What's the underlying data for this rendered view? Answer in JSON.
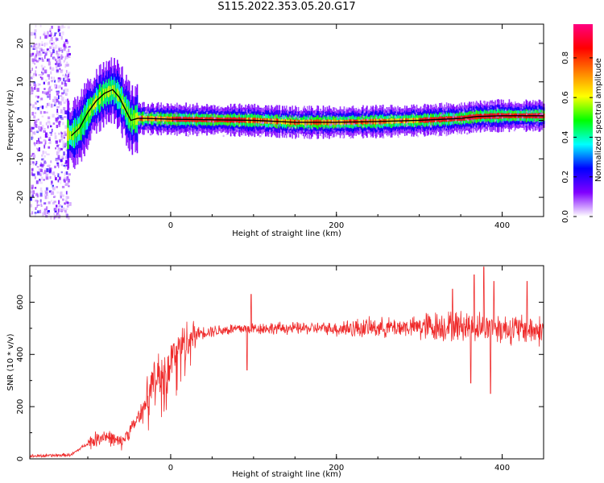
{
  "figure": {
    "title": "S115.2022.353.05.20.G17"
  },
  "chart_data": [
    {
      "type": "heatmap",
      "title": "",
      "xlabel": "Height of straight line (km)",
      "ylabel": "Frequency (Hz)",
      "xlim": [
        -170,
        450
      ],
      "ylim": [
        -25,
        25
      ],
      "xticks": [
        0,
        200,
        400
      ],
      "yticks": [
        -20,
        -10,
        0,
        10,
        20
      ],
      "colorbar": {
        "label": "Normalized spectral amplitude",
        "range": [
          0.0,
          0.97
        ],
        "ticks": [
          0.0,
          0.2,
          0.4,
          0.6,
          0.8
        ],
        "colormap": [
          "#ffffff",
          "#8000ff",
          "#0000ff",
          "#00ffff",
          "#00ff00",
          "#ffff00",
          "#ff8000",
          "#ff0000",
          "#ff0080"
        ]
      },
      "ridge": {
        "x": [
          -170,
          -120,
          -110,
          -100,
          -90,
          -80,
          -70,
          -62,
          -55,
          -48,
          -40,
          -30,
          0,
          100,
          150,
          200,
          250,
          300,
          350,
          370,
          400,
          450
        ],
        "y": [
          0,
          -4,
          -2,
          2,
          5,
          7,
          8,
          6,
          3,
          0,
          0.5,
          0.5,
          0.3,
          0,
          -0.5,
          -0.5,
          -0.3,
          0,
          0.5,
          1,
          1.2,
          1.2
        ]
      },
      "noise_region_x": [
        -170,
        -123
      ]
    },
    {
      "type": "line",
      "title": "",
      "xlabel": "Height of straight line (km)",
      "ylabel": "SNR (10 * v/v)",
      "xlim": [
        -170,
        450
      ],
      "ylim": [
        0,
        740
      ],
      "xticks": [
        0,
        200,
        400
      ],
      "yticks": [
        0,
        200,
        400,
        600
      ],
      "color": "#ef2b2b",
      "trend": {
        "x": [
          -170,
          -120,
          -100,
          -80,
          -60,
          -40,
          -20,
          0,
          10,
          20,
          30,
          50,
          90,
          100,
          150,
          200,
          300,
          350,
          400,
          450
        ],
        "y": [
          10,
          15,
          60,
          90,
          60,
          150,
          300,
          380,
          420,
          460,
          480,
          490,
          500,
          500,
          500,
          500,
          505,
          510,
          500,
          490
        ]
      },
      "spikes": [
        {
          "x": 97,
          "y": 630
        },
        {
          "x": 92,
          "y": 340
        },
        {
          "x": 378,
          "y": 735
        },
        {
          "x": 366,
          "y": 705
        },
        {
          "x": 390,
          "y": 680
        },
        {
          "x": 340,
          "y": 650
        },
        {
          "x": 386,
          "y": 250
        },
        {
          "x": 362,
          "y": 290
        },
        {
          "x": 430,
          "y": 680
        }
      ]
    }
  ]
}
